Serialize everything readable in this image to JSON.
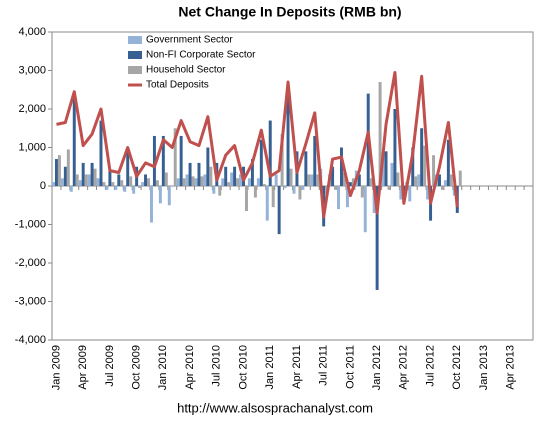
{
  "chart_data": {
    "type": "bar",
    "title": "Net Change In Deposits (RMB bn)",
    "source": "http://www.alsosprachanalyst.com",
    "categories": [
      "Jan 2009",
      null,
      null,
      "Apr 2009",
      null,
      null,
      "Jul 2009",
      null,
      null,
      "Oct 2009",
      null,
      null,
      "Jan 2010",
      null,
      null,
      "Apr 2010",
      null,
      null,
      "Jul 2010",
      null,
      null,
      "Oct 2010",
      null,
      null,
      "Jan 2011",
      null,
      null,
      "Apr 2011",
      null,
      null,
      "Jul 2011",
      null,
      null,
      "Oct 2011",
      null,
      null,
      "Jan 2012",
      null,
      null,
      "Apr 2012",
      null,
      null,
      "Jul 2012",
      null,
      null,
      "Oct 2012",
      null,
      null,
      "Jan 2013",
      null,
      null,
      "Apr 2013",
      null,
      null
    ],
    "ylim": [
      -4000,
      4000
    ],
    "yticks": [
      {
        "value": -4000,
        "label": "-4,000"
      },
      {
        "value": -3000,
        "label": "-3,000"
      },
      {
        "value": -2000,
        "label": "-2,000"
      },
      {
        "value": -1000,
        "label": "-1,000"
      },
      0,
      {
        "value": 1000,
        "label": "1,000"
      },
      {
        "value": 2000,
        "label": "2,000"
      },
      {
        "value": 3000,
        "label": "3,000"
      },
      {
        "value": 4000,
        "label": "4,000"
      }
    ],
    "legend": "upper left",
    "series": [
      {
        "name": "Government Sector",
        "color": "#95b3d7",
        "values": [
          100,
          200,
          -150,
          150,
          300,
          200,
          -100,
          -100,
          -150,
          -200,
          100,
          -950,
          -450,
          -500,
          200,
          300,
          200,
          300,
          -200,
          200,
          350,
          300,
          200,
          200,
          -900,
          300,
          -50,
          -200,
          -100,
          300,
          450,
          300,
          -600,
          -550,
          400,
          -1200,
          -700,
          800,
          600,
          -350,
          -400,
          300,
          -350,
          300,
          150,
          -250,
          null,
          null,
          null,
          null,
          null,
          null,
          null,
          null
        ]
      },
      {
        "name": "Non-FI Corporate Sector",
        "color": "#376092",
        "values": [
          700,
          500,
          2300,
          600,
          600,
          1700,
          400,
          300,
          900,
          500,
          300,
          1300,
          1300,
          0,
          1300,
          600,
          600,
          1000,
          600,
          500,
          500,
          500,
          700,
          1200,
          1700,
          -1250,
          2300,
          900,
          900,
          1300,
          -1050,
          500,
          1000,
          100,
          300,
          2400,
          -2700,
          900,
          2000,
          -200,
          1000,
          1500,
          -900,
          300,
          1200,
          -700,
          null,
          null,
          null,
          null,
          null,
          null,
          null,
          null
        ]
      },
      {
        "name": "Household Sector",
        "color": "#a6a6a6",
        "values": [
          800,
          950,
          300,
          300,
          450,
          100,
          100,
          150,
          250,
          -50,
          200,
          150,
          350,
          1500,
          200,
          250,
          250,
          500,
          -250,
          100,
          200,
          -650,
          -300,
          50,
          -550,
          1350,
          450,
          -350,
          300,
          300,
          -200,
          -100,
          350,
          200,
          -300,
          200,
          2700,
          -100,
          350,
          100,
          250,
          1050,
          800,
          -100,
          300,
          400,
          null,
          null,
          null,
          null,
          null,
          null,
          null,
          null
        ]
      },
      {
        "name": "Total Deposits",
        "type": "line",
        "color": "#c0504d",
        "values": [
          1600,
          1650,
          2450,
          1050,
          1350,
          2000,
          400,
          350,
          1000,
          250,
          600,
          500,
          1200,
          1000,
          1700,
          1150,
          1050,
          1800,
          150,
          800,
          1050,
          150,
          600,
          1450,
          250,
          400,
          2700,
          350,
          1100,
          1900,
          -800,
          700,
          750,
          -250,
          400,
          1400,
          -700,
          1600,
          2950,
          -450,
          850,
          2850,
          -450,
          500,
          1650,
          -550,
          null,
          null,
          null,
          null,
          null,
          null,
          null,
          null
        ]
      }
    ]
  }
}
